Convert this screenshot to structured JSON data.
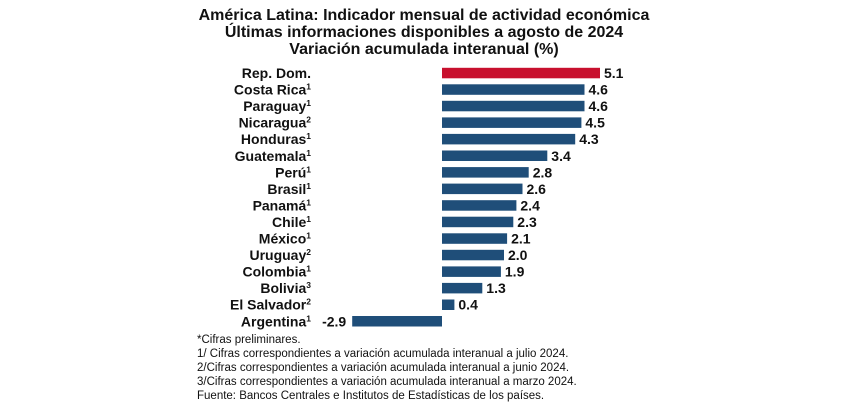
{
  "chart_data": {
    "type": "bar",
    "orientation": "horizontal",
    "title": "América Latina: Indicador mensual de actividad económica",
    "subtitle": "Últimas informaciones disponibles a agosto de 2024",
    "ylabel": "Variación acumulada interanual (%)",
    "xlim": [
      -2.9,
      5.1
    ],
    "grid": false,
    "categories": [
      {
        "label": "Rep. Dom.",
        "note": ""
      },
      {
        "label": "Costa Rica",
        "note": "1"
      },
      {
        "label": "Paraguay",
        "note": "1"
      },
      {
        "label": "Nicaragua",
        "note": "2"
      },
      {
        "label": "Honduras",
        "note": "1"
      },
      {
        "label": "Guatemala",
        "note": "1"
      },
      {
        "label": "Perú",
        "note": "1"
      },
      {
        "label": "Brasil",
        "note": "1"
      },
      {
        "label": "Panamá",
        "note": "1"
      },
      {
        "label": "Chile",
        "note": "1"
      },
      {
        "label": "México",
        "note": "1"
      },
      {
        "label": "Uruguay",
        "note": "2"
      },
      {
        "label": "Colombia",
        "note": "1"
      },
      {
        "label": "Bolivia",
        "note": "3"
      },
      {
        "label": "El Salvador",
        "note": "2"
      },
      {
        "label": "Argentina",
        "note": "1"
      }
    ],
    "values": [
      5.1,
      4.6,
      4.6,
      4.5,
      4.3,
      3.4,
      2.8,
      2.6,
      2.4,
      2.3,
      2.1,
      2.0,
      1.9,
      1.3,
      0.4,
      -2.9
    ],
    "value_labels": [
      "5.1",
      "4.6",
      "4.6",
      "4.5",
      "4.3",
      "3.4",
      "2.8",
      "2.6",
      "2.4",
      "2.3",
      "2.1",
      "2.0",
      "1.9",
      "1.3",
      "0.4",
      "-2.9"
    ],
    "highlight_index": 0,
    "colors": {
      "highlight": "#c8102e",
      "bar": "#1f4e79"
    }
  },
  "notes": [
    "*Cifras preliminares.",
    "1/ Cifras correspondientes a variación acumulada interanual a julio 2024.",
    "2/Cifras correspondientes a variación acumulada interanual a junio 2024.",
    "3/Cifras correspondientes a variación acumulada interanual a marzo 2024.",
    "Fuente: Bancos Centrales e Institutos de Estadísticas de los países."
  ]
}
